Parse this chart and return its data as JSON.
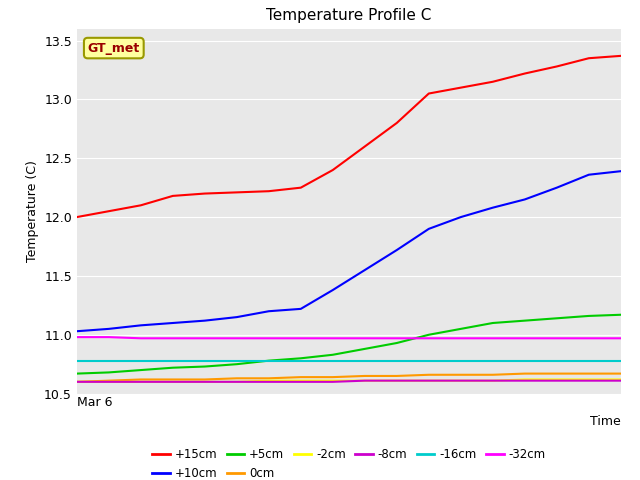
{
  "title": "Temperature Profile C",
  "ylabel": "Temperature (C)",
  "xlabel": "Time",
  "x_label_start": "Mar 6",
  "ylim": [
    10.5,
    13.6
  ],
  "bg_color": "#e8e8e8",
  "legend_label": "GT_met",
  "figsize": [
    6.4,
    4.8
  ],
  "dpi": 100,
  "series": {
    "+15cm": {
      "color": "#ff0000",
      "y": [
        12.0,
        12.05,
        12.1,
        12.18,
        12.2,
        12.21,
        12.22,
        12.25,
        12.4,
        12.6,
        12.8,
        13.05,
        13.1,
        13.15,
        13.22,
        13.28,
        13.35,
        13.37
      ]
    },
    "+10cm": {
      "color": "#0000ff",
      "y": [
        11.03,
        11.05,
        11.08,
        11.1,
        11.12,
        11.15,
        11.2,
        11.22,
        11.38,
        11.55,
        11.72,
        11.9,
        12.0,
        12.08,
        12.15,
        12.25,
        12.36,
        12.39
      ]
    },
    "+5cm": {
      "color": "#00cc00",
      "y": [
        10.67,
        10.68,
        10.7,
        10.72,
        10.73,
        10.75,
        10.78,
        10.8,
        10.83,
        10.88,
        10.93,
        11.0,
        11.05,
        11.1,
        11.12,
        11.14,
        11.16,
        11.17
      ]
    },
    "0cm": {
      "color": "#ff9900",
      "y": [
        10.6,
        10.61,
        10.62,
        10.62,
        10.62,
        10.63,
        10.63,
        10.64,
        10.64,
        10.65,
        10.65,
        10.66,
        10.66,
        10.66,
        10.67,
        10.67,
        10.67,
        10.67
      ]
    },
    "-2cm": {
      "color": "#ffff00",
      "y": [
        10.6,
        10.6,
        10.6,
        10.6,
        10.6,
        10.6,
        10.61,
        10.61,
        10.61,
        10.61,
        10.61,
        10.61,
        10.61,
        10.61,
        10.62,
        10.62,
        10.62,
        10.62
      ]
    },
    "-8cm": {
      "color": "#cc00cc",
      "y": [
        10.6,
        10.6,
        10.6,
        10.6,
        10.6,
        10.6,
        10.6,
        10.6,
        10.6,
        10.61,
        10.61,
        10.61,
        10.61,
        10.61,
        10.61,
        10.61,
        10.61,
        10.61
      ]
    },
    "-16cm": {
      "color": "#00cccc",
      "y": [
        10.78,
        10.78,
        10.78,
        10.78,
        10.78,
        10.78,
        10.78,
        10.78,
        10.78,
        10.78,
        10.78,
        10.78,
        10.78,
        10.78,
        10.78,
        10.78,
        10.78,
        10.78
      ]
    },
    "-32cm": {
      "color": "#ff00ff",
      "y": [
        10.98,
        10.98,
        10.97,
        10.97,
        10.97,
        10.97,
        10.97,
        10.97,
        10.97,
        10.97,
        10.97,
        10.97,
        10.97,
        10.97,
        10.97,
        10.97,
        10.97,
        10.97
      ]
    }
  }
}
